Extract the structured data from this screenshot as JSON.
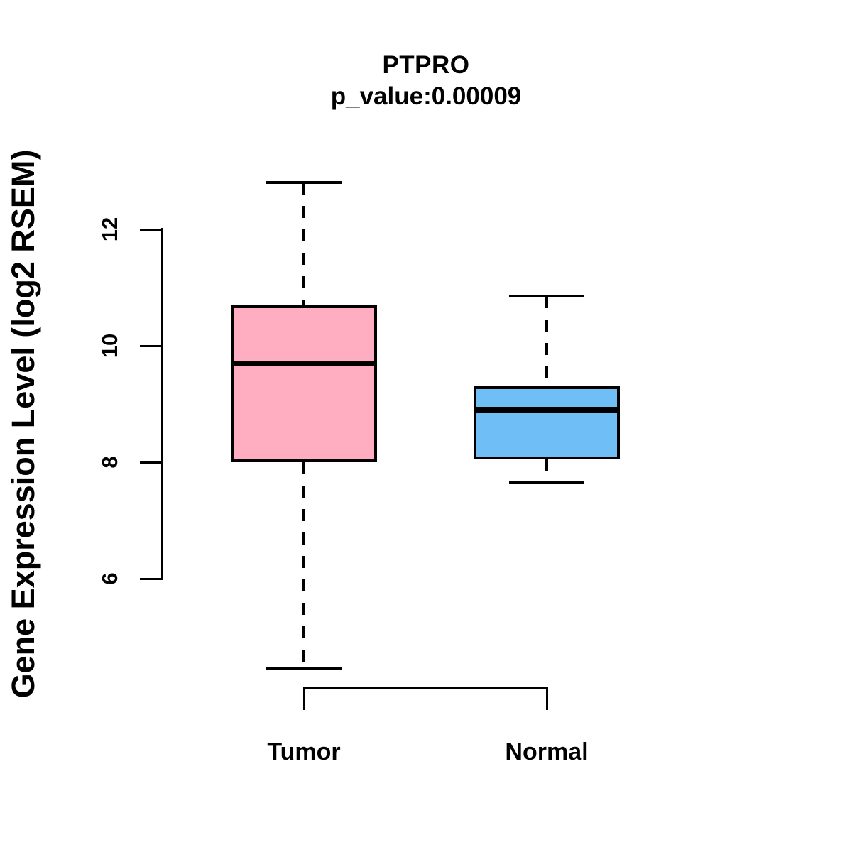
{
  "chart_data": {
    "type": "boxplot",
    "title": "PTPRO",
    "subtitle": "p_value:0.00009",
    "ylabel": "Gene Expression Level (log2 RSEM)",
    "xlabel": "",
    "categories": [
      "Tumor",
      "Normal"
    ],
    "yticks": [
      6,
      8,
      10,
      12
    ],
    "axis_range": [
      6,
      12
    ],
    "grid": false,
    "legend_position": "none",
    "background_color": "#FFFFFF",
    "stroke_color": "#000000",
    "series": [
      {
        "name": "Tumor",
        "fill_color": "#FFAEC1",
        "whisker_low": 4.45,
        "q1": 8.0,
        "median": 9.7,
        "q3": 10.7,
        "whisker_high": 12.8
      },
      {
        "name": "Normal",
        "fill_color": "#70BEF6",
        "whisker_low": 7.65,
        "q1": 8.05,
        "median": 8.9,
        "q3": 9.3,
        "whisker_high": 10.85
      }
    ]
  }
}
